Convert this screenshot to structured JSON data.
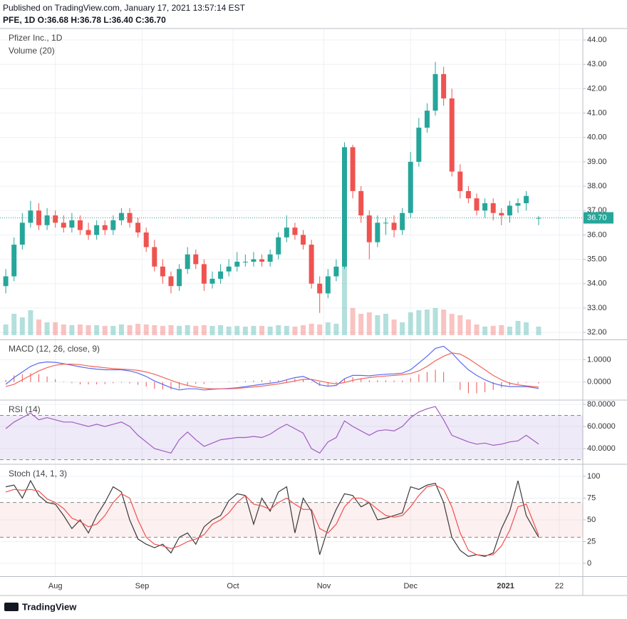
{
  "header": {
    "published": "Published on TradingView.com, January 17, 2021 13:57:14 EST",
    "ohlc": "PFE, 1D O:36.68 H:36.78 L:36.40 C:36.70"
  },
  "footer": {
    "brand": "TradingView"
  },
  "chart_data": [
    {
      "type": "candlestick",
      "title": "Pfizer Inc., 1D",
      "volume_title": "Volume (20)",
      "up_color": "#26a69a",
      "down_color": "#ef5350",
      "grid": true,
      "last_label": "36.70",
      "xlim": [
        -1.4,
        139.7
      ],
      "xticks": [
        {
          "value": 12,
          "label": "Aug"
        },
        {
          "value": 33,
          "label": "Sep"
        },
        {
          "value": 55,
          "label": "Oct"
        },
        {
          "value": 77,
          "label": "Nov"
        },
        {
          "value": 98,
          "label": "Dec"
        },
        {
          "value": 121,
          "label": "2021"
        },
        {
          "value": 134,
          "label": "22"
        }
      ],
      "ylim": [
        31.71,
        44.44
      ],
      "yticks": [
        {
          "value": 32,
          "label": "32.00"
        },
        {
          "value": 33,
          "label": "33.00"
        },
        {
          "value": 34,
          "label": "34.00"
        },
        {
          "value": 35,
          "label": "35.00"
        },
        {
          "value": 36,
          "label": "36.00"
        },
        {
          "value": 37,
          "label": "37.00"
        },
        {
          "value": 38,
          "label": "38.00"
        },
        {
          "value": 39,
          "label": "39.00"
        },
        {
          "value": 40,
          "label": "40.00"
        },
        {
          "value": 41,
          "label": "41.00"
        },
        {
          "value": 42,
          "label": "42.00"
        },
        {
          "value": 43,
          "label": "43.00"
        },
        {
          "value": 44,
          "label": "44.00"
        }
      ],
      "x": [
        0,
        2,
        4,
        6,
        8,
        10,
        12,
        14,
        16,
        18,
        20,
        22,
        24,
        26,
        28,
        30,
        32,
        34,
        36,
        38,
        40,
        42,
        44,
        46,
        48,
        50,
        52,
        54,
        56,
        58,
        60,
        62,
        64,
        66,
        68,
        70,
        72,
        74,
        76,
        78,
        80,
        82,
        84,
        86,
        88,
        90,
        92,
        94,
        96,
        98,
        100,
        102,
        104,
        106,
        108,
        110,
        112,
        114,
        116,
        118,
        120,
        122,
        124,
        126,
        129
      ],
      "open": [
        33.9,
        34.3,
        35.6,
        36.5,
        37.0,
        36.4,
        36.8,
        36.5,
        36.3,
        36.6,
        36.2,
        36.0,
        36.4,
        36.2,
        36.6,
        36.9,
        36.5,
        36.1,
        35.5,
        34.7,
        34.3,
        33.9,
        34.6,
        35.2,
        34.8,
        34.0,
        34.2,
        34.5,
        34.7,
        34.9,
        34.9,
        35.0,
        34.9,
        35.2,
        35.9,
        36.3,
        36.0,
        35.6,
        34.0,
        33.6,
        34.3,
        34.7,
        39.6,
        37.8,
        36.8,
        35.7,
        36.5,
        36.5,
        36.2,
        36.9,
        39.0,
        40.4,
        41.1,
        42.6,
        41.6,
        38.6,
        37.8,
        37.5,
        37.0,
        37.3,
        36.9,
        36.8,
        37.2,
        37.3,
        36.68
      ],
      "high": [
        34.6,
        35.9,
        36.9,
        37.4,
        37.3,
        37.1,
        37.0,
        36.8,
        36.9,
        36.8,
        36.5,
        36.6,
        36.6,
        36.8,
        37.1,
        37.1,
        36.7,
        36.3,
        35.8,
        35.0,
        34.5,
        34.8,
        35.5,
        35.4,
        35.0,
        34.5,
        34.8,
        35.0,
        35.3,
        35.2,
        35.3,
        35.2,
        35.4,
        36.1,
        36.8,
        36.5,
        36.2,
        35.8,
        34.3,
        34.6,
        35.0,
        39.8,
        39.7,
        38.0,
        37.0,
        36.8,
        36.7,
        36.8,
        37.1,
        39.4,
        40.8,
        41.4,
        43.1,
        42.9,
        42.0,
        38.9,
        38.0,
        37.7,
        37.5,
        37.5,
        37.1,
        37.4,
        37.5,
        37.8,
        36.78
      ],
      "low": [
        33.6,
        34.1,
        35.4,
        36.3,
        36.2,
        36.2,
        36.3,
        36.1,
        36.1,
        36.0,
        35.8,
        35.8,
        36.0,
        36.0,
        36.4,
        36.3,
        35.9,
        35.3,
        34.5,
        34.0,
        33.6,
        33.7,
        34.4,
        34.6,
        33.7,
        33.8,
        34.0,
        34.3,
        34.5,
        34.7,
        34.7,
        34.7,
        34.7,
        35.0,
        35.7,
        35.8,
        35.4,
        33.8,
        32.8,
        33.4,
        34.1,
        34.6,
        37.5,
        36.5,
        35.0,
        35.5,
        36.0,
        35.9,
        36.0,
        36.7,
        38.8,
        40.2,
        40.9,
        41.3,
        38.4,
        37.5,
        37.3,
        36.8,
        36.7,
        36.6,
        36.4,
        36.5,
        36.9,
        37.0,
        36.4
      ],
      "close": [
        34.3,
        35.6,
        36.5,
        37.0,
        36.4,
        36.8,
        36.5,
        36.3,
        36.6,
        36.2,
        36.0,
        36.4,
        36.2,
        36.6,
        36.9,
        36.5,
        36.1,
        35.5,
        34.7,
        34.3,
        33.9,
        34.6,
        35.2,
        34.8,
        34.0,
        34.2,
        34.5,
        34.7,
        34.9,
        34.9,
        35.0,
        34.9,
        35.2,
        35.9,
        36.3,
        36.0,
        35.6,
        34.0,
        33.6,
        34.3,
        34.7,
        39.6,
        37.8,
        36.8,
        35.7,
        36.5,
        36.5,
        36.2,
        36.9,
        39.0,
        40.4,
        41.1,
        42.6,
        41.6,
        38.6,
        37.8,
        37.5,
        37.0,
        37.3,
        36.9,
        36.8,
        37.2,
        37.3,
        37.6,
        36.7
      ],
      "volume": [
        15,
        30,
        25,
        35,
        22,
        18,
        18,
        15,
        14,
        15,
        14,
        14,
        13,
        13,
        15,
        14,
        16,
        15,
        14,
        13,
        14,
        13,
        14,
        13,
        14,
        13,
        14,
        12,
        13,
        12,
        13,
        13,
        12,
        14,
        13,
        12,
        14,
        16,
        15,
        18,
        16,
        100,
        38,
        30,
        32,
        28,
        30,
        22,
        18,
        32,
        35,
        36,
        38,
        36,
        30,
        28,
        22,
        15,
        12,
        13,
        14,
        12,
        20,
        18,
        12
      ]
    },
    {
      "type": "macd",
      "title": "MACD (12, 26, close, 9)",
      "grid": true,
      "ylim": [
        -0.77,
        1.87
      ],
      "yticks": [
        {
          "value": 1,
          "label": "1.0000"
        },
        {
          "value": 0,
          "label": "0.0000"
        }
      ],
      "histogram": {
        "color": "#ef5350",
        "values": [
          0.1,
          0.3,
          0.35,
          0.4,
          0.35,
          0.25,
          0.13,
          0.02,
          -0.05,
          -0.1,
          -0.1,
          -0.1,
          -0.09,
          -0.05,
          -0.03,
          -0.06,
          -0.12,
          -0.2,
          -0.3,
          -0.32,
          -0.33,
          -0.3,
          -0.15,
          -0.08,
          -0.08,
          -0.02,
          0,
          0.02,
          0.03,
          0.05,
          0.07,
          0.08,
          0.08,
          0.08,
          0.12,
          0.15,
          0.13,
          -0.02,
          -0.17,
          -0.15,
          -0.07,
          0.17,
          0.22,
          0.15,
          0.08,
          0.08,
          0.08,
          0.07,
          0.07,
          0.17,
          0.35,
          0.45,
          0.55,
          0.45,
          0.0,
          -0.35,
          -0.5,
          -0.5,
          -0.45,
          -0.35,
          -0.25,
          -0.15,
          -0.08,
          -0.03,
          -0.06
        ]
      },
      "series": [
        {
          "color": "#5c6bf0",
          "values": [
            -0.1,
            0.2,
            0.45,
            0.7,
            0.85,
            0.9,
            0.88,
            0.82,
            0.75,
            0.68,
            0.62,
            0.58,
            0.55,
            0.55,
            0.55,
            0.5,
            0.4,
            0.25,
            0.05,
            -0.1,
            -0.25,
            -0.35,
            -0.3,
            -0.3,
            -0.35,
            -0.32,
            -0.3,
            -0.28,
            -0.25,
            -0.2,
            -0.15,
            -0.1,
            -0.05,
            0.0,
            0.1,
            0.2,
            0.25,
            0.1,
            -0.12,
            -0.18,
            -0.15,
            0.15,
            0.3,
            0.3,
            0.28,
            0.32,
            0.35,
            0.37,
            0.4,
            0.55,
            0.85,
            1.15,
            1.5,
            1.6,
            1.3,
            0.9,
            0.55,
            0.3,
            0.1,
            -0.05,
            -0.15,
            -0.2,
            -0.2,
            -0.2,
            -0.28
          ]
        },
        {
          "color": "#f0655a",
          "values": [
            -0.2,
            -0.1,
            0.1,
            0.3,
            0.5,
            0.65,
            0.75,
            0.8,
            0.8,
            0.78,
            0.72,
            0.68,
            0.64,
            0.6,
            0.58,
            0.56,
            0.52,
            0.45,
            0.35,
            0.22,
            0.08,
            -0.05,
            -0.15,
            -0.22,
            -0.27,
            -0.3,
            -0.3,
            -0.3,
            -0.28,
            -0.25,
            -0.22,
            -0.18,
            -0.13,
            -0.08,
            -0.02,
            0.05,
            0.12,
            0.12,
            0.05,
            -0.03,
            -0.08,
            -0.02,
            0.08,
            0.15,
            0.2,
            0.24,
            0.27,
            0.3,
            0.33,
            0.38,
            0.5,
            0.7,
            0.95,
            1.15,
            1.3,
            1.25,
            1.05,
            0.8,
            0.55,
            0.3,
            0.1,
            -0.05,
            -0.12,
            -0.17,
            -0.22
          ]
        }
      ]
    },
    {
      "type": "line",
      "title": "RSI (14)",
      "grid": true,
      "ylim": [
        26.5,
        83.2
      ],
      "yticks": [
        {
          "value": 80,
          "label": "80.0000"
        },
        {
          "value": 60,
          "label": "60.0000"
        },
        {
          "value": 40,
          "label": "40.0000"
        }
      ],
      "band": [
        30,
        70
      ],
      "band_color": "#9575cd",
      "series": [
        {
          "color": "#a05cc0",
          "values": [
            58,
            64,
            68,
            72,
            66,
            68,
            66,
            64,
            64,
            62,
            60,
            62,
            60,
            62,
            64,
            60,
            52,
            46,
            40,
            38,
            36,
            48,
            55,
            48,
            42,
            45,
            48,
            49,
            50,
            50,
            51,
            50,
            53,
            58,
            62,
            58,
            54,
            40,
            36,
            46,
            50,
            65,
            60,
            56,
            52,
            56,
            57,
            56,
            60,
            68,
            73,
            76,
            78,
            66,
            52,
            49,
            46,
            44,
            45,
            43,
            44,
            46,
            47,
            52,
            44
          ]
        }
      ]
    },
    {
      "type": "line",
      "title": "Stoch (14, 1, 3)",
      "grid": true,
      "ylim": [
        -14.8,
        113.1
      ],
      "yticks": [
        100,
        75,
        50,
        25,
        0
      ],
      "band": [
        30,
        70
      ],
      "band_color": "#ef9a9a",
      "series": [
        {
          "color": "#3a3a3a",
          "values": [
            88,
            90,
            75,
            95,
            78,
            70,
            68,
            55,
            40,
            50,
            35,
            55,
            70,
            88,
            82,
            50,
            28,
            22,
            18,
            22,
            12,
            30,
            35,
            22,
            42,
            50,
            55,
            72,
            80,
            78,
            45,
            75,
            60,
            82,
            88,
            35,
            75,
            60,
            10,
            40,
            62,
            80,
            78,
            65,
            70,
            50,
            52,
            55,
            58,
            88,
            85,
            90,
            92,
            70,
            30,
            15,
            8,
            10,
            8,
            12,
            40,
            60,
            95,
            55,
            30
          ]
        },
        {
          "color": "#f05050",
          "values": [
            82,
            85,
            84,
            85,
            83,
            74,
            70,
            63,
            52,
            48,
            42,
            45,
            55,
            70,
            80,
            75,
            50,
            30,
            22,
            20,
            17,
            20,
            25,
            28,
            33,
            45,
            50,
            58,
            70,
            78,
            68,
            66,
            62,
            70,
            75,
            68,
            62,
            62,
            40,
            35,
            45,
            65,
            75,
            75,
            70,
            62,
            55,
            53,
            55,
            65,
            78,
            88,
            90,
            85,
            65,
            35,
            15,
            10,
            9,
            10,
            20,
            38,
            65,
            68,
            32
          ]
        }
      ]
    }
  ]
}
